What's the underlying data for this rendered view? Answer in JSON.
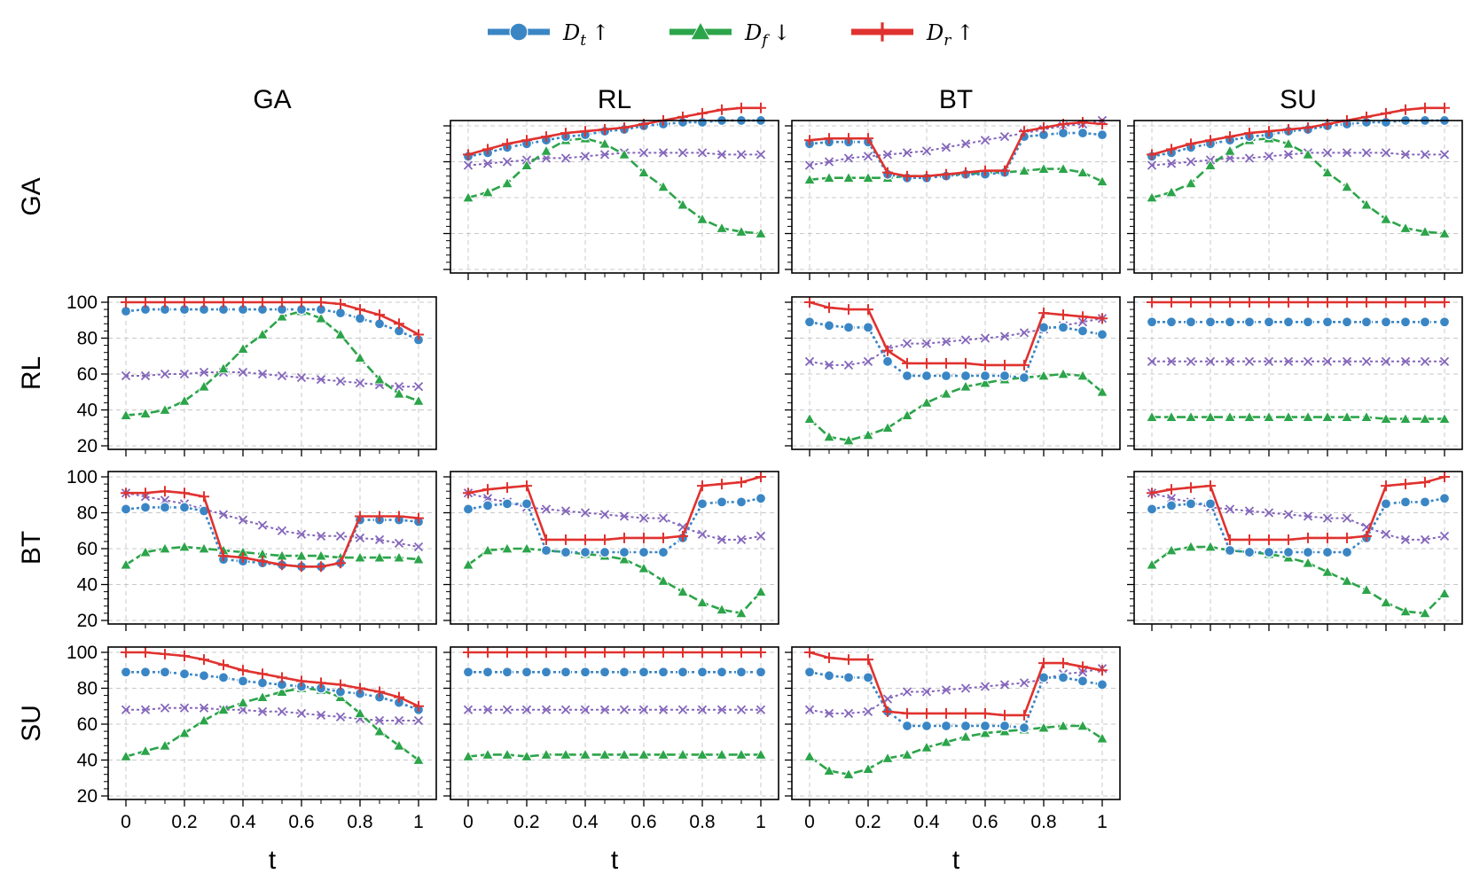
{
  "chart_data": {
    "type": "line",
    "methods": [
      "GA",
      "RL",
      "BT",
      "SU"
    ],
    "xlabel": "t",
    "x_ticks": [
      "0",
      "0.2",
      "0.4",
      "0.6",
      "0.8",
      "1"
    ],
    "y_ticks": [
      "20",
      "40",
      "60",
      "80",
      "100"
    ],
    "ylim": [
      20,
      100
    ],
    "xlim": [
      0,
      1
    ],
    "legend": [
      {
        "key": "Dt",
        "main": "D",
        "sub": "t",
        "arrow": "↑",
        "color": "#3a86c5",
        "marker": "circle"
      },
      {
        "key": "Df",
        "main": "D",
        "sub": "f",
        "arrow": "↓",
        "color": "#2ca44a",
        "marker": "triangle"
      },
      {
        "key": "Dr",
        "main": "D",
        "sub": "r",
        "arrow": "↑",
        "color": "#e0322f",
        "marker": "plus"
      }
    ],
    "extra_series": {
      "key": "avg",
      "color": "#8466bb",
      "marker": "x"
    },
    "x": [
      0,
      0.0667,
      0.1333,
      0.2,
      0.2667,
      0.3333,
      0.4,
      0.4667,
      0.5333,
      0.6,
      0.6667,
      0.7333,
      0.8,
      0.8667,
      0.9333,
      1.0
    ],
    "panels": [
      {
        "row": "GA",
        "col": "RL",
        "series": {
          "Dr": [
            84,
            87,
            90,
            92,
            94,
            96,
            97,
            98,
            99,
            101,
            103,
            105,
            107,
            109,
            110,
            110
          ],
          "Dt": [
            83,
            85,
            88,
            90,
            92,
            94,
            95,
            97,
            98,
            100,
            101,
            102,
            102,
            103,
            103,
            103
          ],
          "avg": [
            78,
            79,
            80,
            81,
            82,
            82,
            83,
            84,
            85,
            85,
            85,
            85,
            85,
            84,
            84,
            84
          ],
          "Df": [
            60,
            63,
            68,
            78,
            86,
            92,
            93,
            90,
            84,
            74,
            66,
            56,
            48,
            43,
            41,
            40
          ]
        }
      },
      {
        "row": "GA",
        "col": "BT",
        "series": {
          "Dr": [
            92,
            93,
            93,
            93,
            74,
            72,
            72,
            73,
            74,
            75,
            75,
            97,
            99,
            101,
            102,
            101
          ],
          "Dt": [
            90,
            91,
            91,
            91,
            73,
            71,
            71,
            72,
            73,
            73,
            74,
            94,
            95,
            96,
            96,
            95
          ],
          "avg": [
            78,
            80,
            82,
            83,
            84,
            85,
            86,
            88,
            90,
            92,
            94,
            96,
            98,
            100,
            101,
            103
          ],
          "Df": [
            70,
            71,
            71,
            71,
            71,
            72,
            72,
            73,
            73,
            74,
            74,
            75,
            76,
            76,
            74,
            69
          ]
        }
      },
      {
        "row": "GA",
        "col": "SU",
        "series": {
          "Dr": [
            84,
            87,
            90,
            92,
            94,
            96,
            97,
            98,
            99,
            101,
            103,
            105,
            107,
            109,
            110,
            110
          ],
          "Dt": [
            83,
            85,
            88,
            90,
            92,
            94,
            95,
            97,
            98,
            100,
            101,
            102,
            102,
            103,
            103,
            103
          ],
          "avg": [
            78,
            79,
            80,
            81,
            82,
            82,
            83,
            84,
            85,
            85,
            85,
            85,
            85,
            84,
            84,
            84
          ],
          "Df": [
            60,
            63,
            68,
            78,
            86,
            92,
            93,
            90,
            84,
            74,
            66,
            56,
            48,
            43,
            41,
            40
          ]
        }
      },
      {
        "row": "RL",
        "col": "GA",
        "series": {
          "Dr": [
            100,
            100,
            100,
            100,
            100,
            100,
            100,
            100,
            100,
            100,
            100,
            99,
            96,
            93,
            88,
            82
          ],
          "Dt": [
            95,
            96,
            96,
            96,
            96,
            96,
            96,
            96,
            96,
            96,
            96,
            94,
            91,
            88,
            84,
            79
          ],
          "avg": [
            59,
            59,
            60,
            60,
            61,
            61,
            61,
            60,
            59,
            58,
            57,
            56,
            55,
            54,
            53,
            53
          ],
          "Df": [
            37,
            38,
            40,
            45,
            53,
            63,
            74,
            82,
            92,
            95,
            91,
            82,
            69,
            57,
            49,
            45
          ]
        }
      },
      {
        "row": "RL",
        "col": "BT",
        "series": {
          "Dr": [
            100,
            97,
            96,
            96,
            73,
            66,
            66,
            66,
            66,
            65,
            65,
            65,
            94,
            93,
            92,
            91
          ],
          "Dt": [
            89,
            87,
            86,
            86,
            67,
            59,
            59,
            59,
            59,
            59,
            59,
            58,
            86,
            86,
            84,
            82
          ],
          "avg": [
            67,
            65,
            65,
            67,
            74,
            77,
            77,
            78,
            79,
            80,
            81,
            83,
            85,
            87,
            89,
            91
          ],
          "Df": [
            35,
            25,
            23,
            26,
            30,
            37,
            44,
            49,
            53,
            55,
            57,
            58,
            59,
            60,
            59,
            50
          ]
        }
      },
      {
        "row": "RL",
        "col": "SU",
        "series": {
          "Dr": [
            100,
            100,
            100,
            100,
            100,
            100,
            100,
            100,
            100,
            100,
            100,
            100,
            100,
            100,
            100,
            100
          ],
          "Dt": [
            89,
            89,
            89,
            89,
            89,
            89,
            89,
            89,
            89,
            89,
            89,
            89,
            89,
            89,
            89,
            89
          ],
          "avg": [
            67,
            67,
            67,
            67,
            67,
            67,
            67,
            67,
            67,
            67,
            67,
            67,
            67,
            67,
            67,
            67
          ],
          "Df": [
            36,
            36,
            36,
            36,
            36,
            36,
            36,
            36,
            36,
            36,
            36,
            36,
            35,
            35,
            35,
            35
          ]
        }
      },
      {
        "row": "BT",
        "col": "GA",
        "series": {
          "Dr": [
            91,
            91,
            92,
            91,
            89,
            56,
            55,
            53,
            51,
            50,
            50,
            52,
            78,
            78,
            78,
            77
          ],
          "Dt": [
            82,
            83,
            83,
            83,
            81,
            54,
            53,
            52,
            51,
            50,
            50,
            52,
            76,
            76,
            76,
            75
          ],
          "avg": [
            91,
            89,
            87,
            85,
            82,
            79,
            76,
            73,
            70,
            68,
            67,
            67,
            66,
            65,
            63,
            61
          ],
          "Df": [
            51,
            58,
            60,
            61,
            60,
            59,
            58,
            57,
            56,
            56,
            56,
            55,
            55,
            55,
            55,
            54
          ]
        }
      },
      {
        "row": "BT",
        "col": "RL",
        "series": {
          "Dr": [
            91,
            93,
            94,
            95,
            65,
            65,
            65,
            65,
            66,
            66,
            66,
            67,
            95,
            96,
            97,
            100
          ],
          "Dt": [
            82,
            84,
            85,
            85,
            59,
            58,
            58,
            58,
            58,
            58,
            58,
            66,
            85,
            86,
            86,
            88
          ],
          "avg": [
            91,
            88,
            86,
            83,
            82,
            81,
            80,
            79,
            78,
            77,
            77,
            72,
            68,
            65,
            65,
            67
          ],
          "Df": [
            51,
            59,
            60,
            60,
            59,
            58,
            57,
            56,
            54,
            49,
            42,
            36,
            30,
            26,
            24,
            36
          ]
        }
      },
      {
        "row": "BT",
        "col": "SU",
        "series": {
          "Dr": [
            91,
            93,
            94,
            95,
            65,
            65,
            65,
            65,
            66,
            66,
            66,
            67,
            95,
            96,
            97,
            100
          ],
          "Dt": [
            82,
            84,
            85,
            85,
            59,
            58,
            58,
            58,
            58,
            58,
            58,
            66,
            85,
            86,
            86,
            88
          ],
          "avg": [
            91,
            88,
            86,
            83,
            82,
            81,
            80,
            79,
            78,
            77,
            77,
            72,
            68,
            65,
            65,
            67
          ],
          "Df": [
            51,
            59,
            61,
            61,
            59,
            58,
            57,
            55,
            52,
            47,
            42,
            37,
            30,
            25,
            24,
            35
          ]
        }
      },
      {
        "row": "SU",
        "col": "GA",
        "series": {
          "Dr": [
            100,
            100,
            99,
            98,
            96,
            93,
            90,
            88,
            86,
            84,
            83,
            82,
            80,
            78,
            75,
            70
          ],
          "Dt": [
            89,
            89,
            89,
            88,
            87,
            86,
            84,
            83,
            82,
            81,
            80,
            78,
            77,
            75,
            72,
            68
          ],
          "avg": [
            68,
            68,
            69,
            69,
            69,
            68,
            68,
            67,
            67,
            66,
            65,
            64,
            63,
            62,
            62,
            62
          ],
          "Df": [
            42,
            45,
            48,
            55,
            62,
            68,
            72,
            75,
            78,
            80,
            79,
            75,
            66,
            56,
            48,
            40
          ]
        }
      },
      {
        "row": "SU",
        "col": "RL",
        "series": {
          "Dr": [
            100,
            100,
            100,
            100,
            100,
            100,
            100,
            100,
            100,
            100,
            100,
            100,
            100,
            100,
            100,
            100
          ],
          "Dt": [
            89,
            89,
            89,
            89,
            89,
            89,
            89,
            89,
            89,
            89,
            89,
            89,
            89,
            89,
            89,
            89
          ],
          "avg": [
            68,
            68,
            68,
            68,
            68,
            68,
            68,
            68,
            68,
            68,
            68,
            68,
            68,
            68,
            68,
            68
          ],
          "Df": [
            42,
            43,
            43,
            42,
            43,
            43,
            43,
            43,
            43,
            43,
            43,
            43,
            43,
            43,
            43,
            43
          ]
        }
      },
      {
        "row": "SU",
        "col": "BT",
        "series": {
          "Dr": [
            100,
            97,
            96,
            96,
            67,
            66,
            66,
            66,
            66,
            66,
            65,
            65,
            94,
            94,
            92,
            90
          ],
          "Dt": [
            89,
            87,
            86,
            86,
            67,
            59,
            59,
            59,
            59,
            59,
            59,
            58,
            86,
            86,
            84,
            82
          ],
          "avg": [
            68,
            66,
            66,
            67,
            74,
            78,
            78,
            79,
            80,
            81,
            82,
            83,
            85,
            88,
            89,
            91
          ],
          "Df": [
            42,
            34,
            32,
            35,
            41,
            43,
            47,
            50,
            53,
            55,
            56,
            57,
            58,
            59,
            59,
            52
          ]
        }
      }
    ]
  }
}
